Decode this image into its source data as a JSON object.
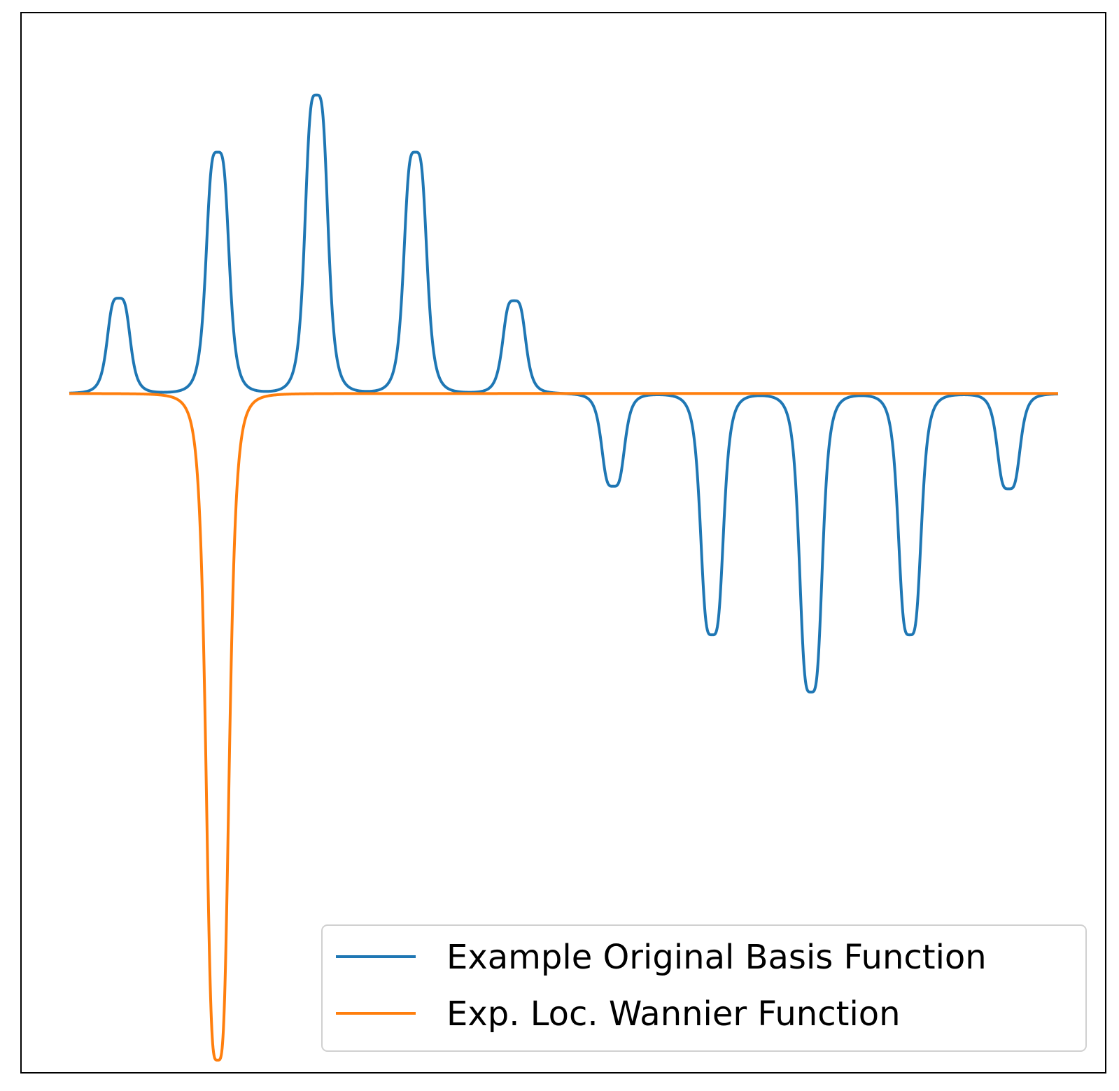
{
  "chart_data": {
    "type": "line",
    "title": "",
    "xlabel": "",
    "ylabel": "",
    "axes_visible": false,
    "grid": false,
    "legend": {
      "placement": "lower-right"
    },
    "xlim": [
      0,
      20
    ],
    "ylim": [
      -1.07,
      0.6
    ],
    "series": [
      {
        "name": "Example Original Basis Function",
        "color": "#1f77b4",
        "peaks": [
          {
            "x": 1,
            "amplitude": 0.15,
            "width": 0.25
          },
          {
            "x": 3,
            "amplitude": 0.38,
            "width": 0.25
          },
          {
            "x": 5,
            "amplitude": 0.47,
            "width": 0.25
          },
          {
            "x": 7,
            "amplitude": 0.38,
            "width": 0.25
          },
          {
            "x": 9,
            "amplitude": 0.146,
            "width": 0.25
          },
          {
            "x": 11,
            "amplitude": -0.146,
            "width": 0.25
          },
          {
            "x": 13,
            "amplitude": -0.38,
            "width": 0.25
          },
          {
            "x": 15,
            "amplitude": -0.47,
            "width": 0.25
          },
          {
            "x": 17,
            "amplitude": -0.38,
            "width": 0.25
          },
          {
            "x": 19,
            "amplitude": -0.15,
            "width": 0.25
          }
        ]
      },
      {
        "name": "Exp. Loc. Wannier Function",
        "color": "#ff7f0e",
        "peaks": [
          {
            "x": 3,
            "amplitude": -1.05,
            "width": 0.25
          }
        ]
      }
    ]
  }
}
